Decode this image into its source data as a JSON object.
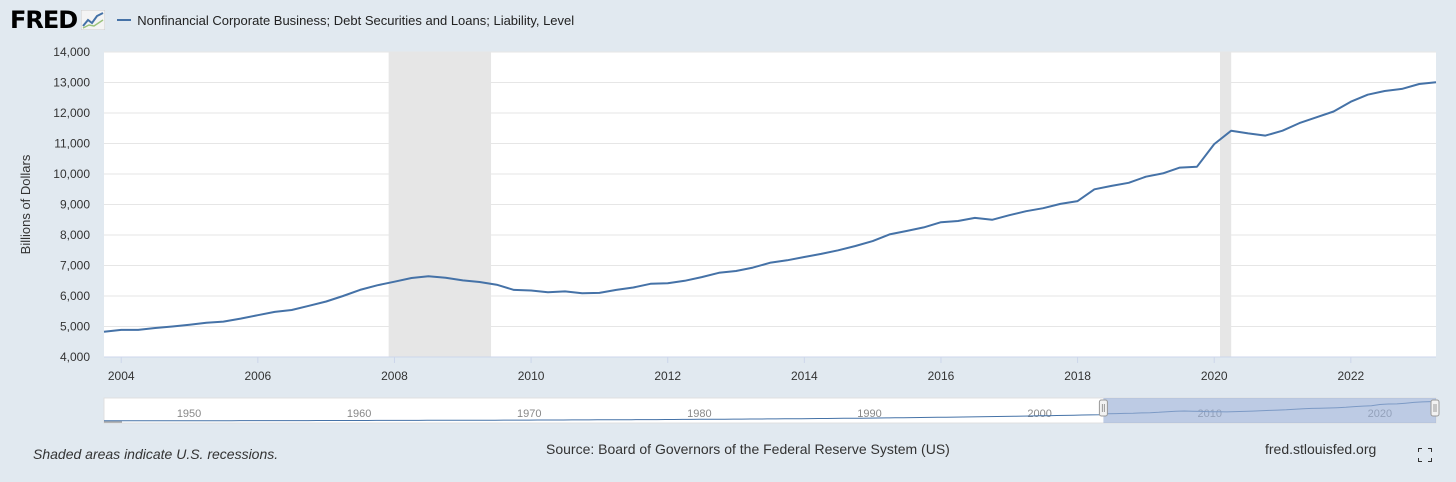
{
  "header": {
    "logo": "FRED",
    "logo_icon": "line-chart-icon",
    "series_title": "Nonfinancial Corporate Business; Debt Securities and Loans; Liability, Level"
  },
  "footer": {
    "recession_note": "Shaded areas indicate U.S. recessions.",
    "source": "Source: Board of Governors of the Federal Reserve System (US)",
    "site": "fred.stlouisfed.org",
    "fullscreen_icon": "fullscreen-icon"
  },
  "colors": {
    "background": "#e1e9f0",
    "plot": "#ffffff",
    "series": "#4572a7",
    "recession": "#e6e6e6",
    "navigator_fill": "#9aafd6"
  },
  "chart_data": {
    "type": "line",
    "title": "",
    "xlabel": "",
    "ylabel": "Billions of Dollars",
    "xlim": [
      "2003-10-01",
      "2023-04-01"
    ],
    "ylim": [
      4000,
      14000
    ],
    "y_ticks": [
      "4,000",
      "5,000",
      "6,000",
      "7,000",
      "8,000",
      "9,000",
      "10,000",
      "11,000",
      "12,000",
      "13,000",
      "14,000"
    ],
    "x_ticks": [
      "2004",
      "2006",
      "2008",
      "2010",
      "2012",
      "2014",
      "2016",
      "2018",
      "2020",
      "2022"
    ],
    "grid": true,
    "recessions": [
      {
        "start": "2007-12-01",
        "end": "2009-06-01"
      },
      {
        "start": "2020-02-01",
        "end": "2020-04-01"
      }
    ],
    "series": [
      {
        "name": "Nonfinancial Corporate Business; Debt Securities and Loans; Liability, Level",
        "x": [
          "2003-10-01",
          "2004-01-01",
          "2004-04-01",
          "2004-07-01",
          "2004-10-01",
          "2005-01-01",
          "2005-04-01",
          "2005-07-01",
          "2005-10-01",
          "2006-01-01",
          "2006-04-01",
          "2006-07-01",
          "2006-10-01",
          "2007-01-01",
          "2007-04-01",
          "2007-07-01",
          "2007-10-01",
          "2008-01-01",
          "2008-04-01",
          "2008-07-01",
          "2008-10-01",
          "2009-01-01",
          "2009-04-01",
          "2009-07-01",
          "2009-10-01",
          "2010-01-01",
          "2010-04-01",
          "2010-07-01",
          "2010-10-01",
          "2011-01-01",
          "2011-04-01",
          "2011-07-01",
          "2011-10-01",
          "2012-01-01",
          "2012-04-01",
          "2012-07-01",
          "2012-10-01",
          "2013-01-01",
          "2013-04-01",
          "2013-07-01",
          "2013-10-01",
          "2014-01-01",
          "2014-04-01",
          "2014-07-01",
          "2014-10-01",
          "2015-01-01",
          "2015-04-01",
          "2015-07-01",
          "2015-10-01",
          "2016-01-01",
          "2016-04-01",
          "2016-07-01",
          "2016-10-01",
          "2017-01-01",
          "2017-04-01",
          "2017-07-01",
          "2017-10-01",
          "2018-01-01",
          "2018-04-01",
          "2018-07-01",
          "2018-10-01",
          "2019-01-01",
          "2019-04-01",
          "2019-07-01",
          "2019-10-01",
          "2020-01-01",
          "2020-04-01",
          "2020-07-01",
          "2020-10-01",
          "2021-01-01",
          "2021-04-01",
          "2021-07-01",
          "2021-10-01",
          "2022-01-01",
          "2022-04-01",
          "2022-07-01",
          "2022-10-01",
          "2023-01-01",
          "2023-04-01"
        ],
        "values": [
          4830,
          4890,
          4890,
          4950,
          5000,
          5060,
          5120,
          5160,
          5260,
          5370,
          5480,
          5540,
          5680,
          5820,
          6000,
          6200,
          6350,
          6470,
          6590,
          6650,
          6600,
          6510,
          6460,
          6370,
          6200,
          6180,
          6120,
          6150,
          6090,
          6100,
          6200,
          6280,
          6400,
          6420,
          6500,
          6620,
          6760,
          6820,
          6930,
          7090,
          7170,
          7280,
          7380,
          7500,
          7640,
          7800,
          8020,
          8130,
          8250,
          8420,
          8460,
          8560,
          8500,
          8650,
          8780,
          8880,
          9020,
          9110,
          9500,
          9610,
          9710,
          9910,
          10020,
          10210,
          10240,
          10980,
          11420,
          11330,
          11260,
          11420,
          11670,
          11860,
          12050,
          12370,
          12600,
          12720,
          12790,
          12950,
          13010
        ]
      }
    ],
    "navigator": {
      "x_ticks": [
        "1950",
        "1960",
        "1970",
        "1980",
        "1990",
        "2000",
        "2010",
        "2020"
      ]
    }
  }
}
